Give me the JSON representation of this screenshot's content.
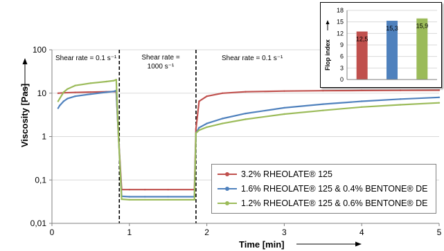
{
  "chart_data": [
    {
      "type": "line",
      "title": "",
      "xlabel": "Time [min]",
      "ylabel": "Viscosity [Pas]",
      "xlim": [
        0,
        5
      ],
      "ylim": [
        0.01,
        100
      ],
      "y_scale": "log",
      "x_ticks": [
        "0",
        "1",
        "2",
        "3",
        "4",
        "5"
      ],
      "y_ticks": [
        "0,01",
        "0,1",
        "1",
        "10",
        "100"
      ],
      "grid": "horizontal",
      "phase_boundaries": [
        0.87,
        1.86
      ],
      "annotations": [
        "Shear rate = 0.1 s⁻¹",
        "Shear rate =",
        "1000 s⁻¹",
        "Shear rate = 0.1 s⁻¹"
      ],
      "legend_position": "bottom-right",
      "series": [
        {
          "name": "3.2% RHEOLATE® 125",
          "color": "#c0504d",
          "x": [
            0.08,
            0.15,
            0.3,
            0.5,
            0.7,
            0.83,
            0.86,
            0.9,
            1.0,
            1.2,
            1.5,
            1.84,
            1.86,
            1.9,
            2.0,
            2.2,
            2.5,
            3.0,
            3.5,
            4.0,
            4.5,
            5.0
          ],
          "y": [
            10.0,
            10.2,
            10.4,
            10.6,
            10.8,
            10.9,
            1.0,
            0.06,
            0.06,
            0.06,
            0.06,
            0.06,
            1.5,
            6.5,
            8.5,
            10.0,
            10.8,
            11.2,
            11.4,
            11.5,
            11.6,
            11.7
          ]
        },
        {
          "name": "1.6% RHEOLATE® 125 & 0.4% BENTONE® DE",
          "color": "#4f81bd",
          "x": [
            0.08,
            0.1,
            0.15,
            0.2,
            0.3,
            0.5,
            0.7,
            0.8,
            0.83,
            0.86,
            0.9,
            1.0,
            1.2,
            1.5,
            1.84,
            1.86,
            1.9,
            2.0,
            2.2,
            2.5,
            3.0,
            3.5,
            4.0,
            4.5,
            5.0
          ],
          "y": [
            4.5,
            5.2,
            6.5,
            7.5,
            8.5,
            9.5,
            10.5,
            11.0,
            11.5,
            1.0,
            0.042,
            0.041,
            0.041,
            0.041,
            0.041,
            1.2,
            1.6,
            2.0,
            2.6,
            3.4,
            4.6,
            5.6,
            6.5,
            7.3,
            8.0
          ]
        },
        {
          "name": "1.2% RHEOLATE® 125 & 0.6% BENTONE® DE",
          "color": "#9bbb59",
          "x": [
            0.08,
            0.1,
            0.15,
            0.2,
            0.3,
            0.5,
            0.7,
            0.8,
            0.83,
            0.86,
            0.9,
            1.0,
            1.2,
            1.5,
            1.84,
            1.86,
            1.9,
            2.0,
            2.2,
            2.5,
            3.0,
            3.5,
            4.0,
            4.5,
            5.0
          ],
          "y": [
            6.5,
            7.5,
            10.5,
            12.5,
            15.0,
            17.0,
            18.5,
            19.5,
            20.5,
            1.0,
            0.036,
            0.035,
            0.035,
            0.035,
            0.035,
            1.2,
            1.4,
            1.65,
            2.0,
            2.5,
            3.3,
            4.0,
            4.8,
            5.4,
            6.0
          ]
        }
      ]
    },
    {
      "type": "bar",
      "title": "",
      "ylabel": "Flop index",
      "ylim": [
        0,
        18
      ],
      "y_ticks": [
        "0",
        "3",
        "6",
        "9",
        "12",
        "15",
        "18"
      ],
      "categories": [
        "3.2% RHEOLATE® 125",
        "1.6% RHEOLATE® 125 & 0.4% BENTONE® DE",
        "1.2% RHEOLATE® 125 & 0.6% BENTONE® DE"
      ],
      "values": [
        12.5,
        15.3,
        15.9
      ],
      "data_labels": [
        "12,5",
        "15,3",
        "15,9"
      ],
      "colors": [
        "#c0504d",
        "#4f81bd",
        "#9bbb59"
      ]
    }
  ]
}
